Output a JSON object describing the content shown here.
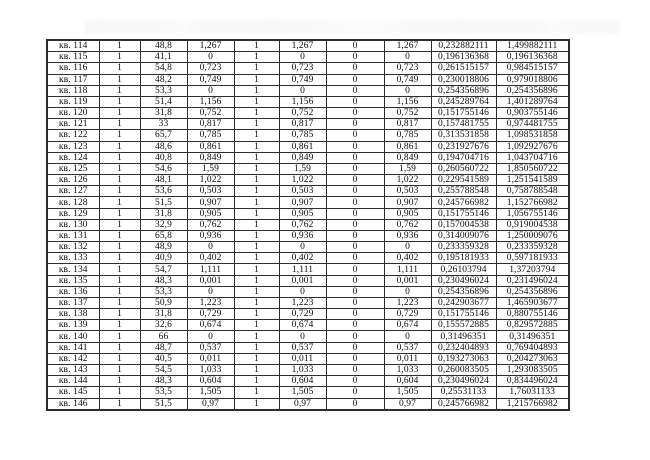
{
  "colors": {
    "background": "#ffffff",
    "border": "#2e2e2e",
    "text": "#0e0e0e"
  },
  "table": {
    "rows": [
      {
        "label": "кв. 114",
        "values": [
          "1",
          "48,8",
          "1,267",
          "1",
          "1,267",
          "0",
          "1,267",
          "0,232882111",
          "1,499882111"
        ]
      },
      {
        "label": "кв. 115",
        "values": [
          "1",
          "41,1",
          "0",
          "1",
          "0",
          "0",
          "0",
          "0,196136368",
          "0,196136368"
        ]
      },
      {
        "label": "кв. 116",
        "values": [
          "1",
          "54,8",
          "0,723",
          "1",
          "0,723",
          "0",
          "0,723",
          "0,261515157",
          "0,984515157"
        ]
      },
      {
        "label": "кв. 117",
        "values": [
          "1",
          "48,2",
          "0,749",
          "1",
          "0,749",
          "0",
          "0,749",
          "0,230018806",
          "0,979018806"
        ]
      },
      {
        "label": "кв. 118",
        "values": [
          "1",
          "53,3",
          "0",
          "1",
          "0",
          "0",
          "0",
          "0,254356896",
          "0,254356896"
        ]
      },
      {
        "label": "кв. 119",
        "values": [
          "1",
          "51,4",
          "1,156",
          "1",
          "1,156",
          "0",
          "1,156",
          "0,245289764",
          "1,401289764"
        ]
      },
      {
        "label": "кв. 120",
        "values": [
          "1",
          "31,8",
          "0,752",
          "1",
          "0,752",
          "0",
          "0,752",
          "0,151755146",
          "0,903755146"
        ]
      },
      {
        "label": "кв. 121",
        "values": [
          "1",
          "33",
          "0,817",
          "1",
          "0,817",
          "0",
          "0,817",
          "0,157481755",
          "0,974481755"
        ]
      },
      {
        "label": "кв. 122",
        "values": [
          "1",
          "65,7",
          "0,785",
          "1",
          "0,785",
          "0",
          "0,785",
          "0,313531858",
          "1,098531858"
        ]
      },
      {
        "label": "кв. 123",
        "values": [
          "1",
          "48,6",
          "0,861",
          "1",
          "0,861",
          "0",
          "0,861",
          "0,231927676",
          "1,092927676"
        ]
      },
      {
        "label": "кв. 124",
        "values": [
          "1",
          "40,8",
          "0,849",
          "1",
          "0,849",
          "0",
          "0,849",
          "0,194704716",
          "1,043704716"
        ]
      },
      {
        "label": "кв. 125",
        "values": [
          "1",
          "54,6",
          "1,59",
          "1",
          "1,59",
          "0",
          "1,59",
          "0,260560722",
          "1,850560722"
        ]
      },
      {
        "label": "кв. 126",
        "values": [
          "1",
          "48,1",
          "1,022",
          "1",
          "1,022",
          "0",
          "1,022",
          "0,229541589",
          "1,251541589"
        ]
      },
      {
        "label": "кв. 127",
        "values": [
          "1",
          "53,6",
          "0,503",
          "1",
          "0,503",
          "0",
          "0,503",
          "0,255788548",
          "0,758788548"
        ]
      },
      {
        "label": "кв. 128",
        "values": [
          "1",
          "51,5",
          "0,907",
          "1",
          "0,907",
          "0",
          "0,907",
          "0,245766982",
          "1,152766982"
        ]
      },
      {
        "label": "кв. 129",
        "values": [
          "1",
          "31,8",
          "0,905",
          "1",
          "0,905",
          "0",
          "0,905",
          "0,151755146",
          "1,056755146"
        ]
      },
      {
        "label": "кв. 130",
        "values": [
          "1",
          "32,9",
          "0,762",
          "1",
          "0,762",
          "0",
          "0,762",
          "0,157004538",
          "0,919004538"
        ]
      },
      {
        "label": "кв. 131",
        "values": [
          "1",
          "65,8",
          "0,936",
          "1",
          "0,936",
          "0",
          "0,936",
          "0,314009076",
          "1,250009076"
        ]
      },
      {
        "label": "кв. 132",
        "values": [
          "1",
          "48,9",
          "0",
          "1",
          "0",
          "0",
          "0",
          "0,233359328",
          "0,233359328"
        ]
      },
      {
        "label": "кв. 133",
        "values": [
          "1",
          "40,9",
          "0,402",
          "1",
          "0,402",
          "0",
          "0,402",
          "0,195181933",
          "0,597181933"
        ]
      },
      {
        "label": "кв. 134",
        "values": [
          "1",
          "54,7",
          "1,111",
          "1",
          "1,111",
          "0",
          "1,111",
          "0,26103794",
          "1,37203794"
        ]
      },
      {
        "label": "кв. 135",
        "values": [
          "1",
          "48,3",
          "0,001",
          "1",
          "0,001",
          "0",
          "0,001",
          "0,230496024",
          "0,231496024"
        ]
      },
      {
        "label": "кв. 136",
        "values": [
          "1",
          "53,3",
          "0",
          "1",
          "0",
          "0",
          "0",
          "0,254356896",
          "0,254356896"
        ]
      },
      {
        "label": "кв. 137",
        "values": [
          "1",
          "50,9",
          "1,223",
          "1",
          "1,223",
          "0",
          "1,223",
          "0,242903677",
          "1,465903677"
        ]
      },
      {
        "label": "кв. 138",
        "values": [
          "1",
          "31,8",
          "0,729",
          "1",
          "0,729",
          "0",
          "0,729",
          "0,151755146",
          "0,880755146"
        ]
      },
      {
        "label": "кв. 139",
        "values": [
          "1",
          "32,6",
          "0,674",
          "1",
          "0,674",
          "0",
          "0,674",
          "0,155572885",
          "0,829572885"
        ]
      },
      {
        "label": "кв. 140",
        "values": [
          "1",
          "66",
          "0",
          "1",
          "0",
          "0",
          "0",
          "0,31496351",
          "0,31496351"
        ]
      },
      {
        "label": "кв. 141",
        "values": [
          "1",
          "48,7",
          "0,537",
          "1",
          "0,537",
          "0",
          "0,537",
          "0,232404893",
          "0,769404893"
        ]
      },
      {
        "label": "кв. 142",
        "values": [
          "1",
          "40,5",
          "0,011",
          "1",
          "0,011",
          "0",
          "0,011",
          "0,193273063",
          "0,204273063"
        ]
      },
      {
        "label": "кв. 143",
        "values": [
          "1",
          "54,5",
          "1,033",
          "1",
          "1,033",
          "0",
          "1,033",
          "0,260083505",
          "1,293083505"
        ]
      },
      {
        "label": "кв. 144",
        "values": [
          "1",
          "48,3",
          "0,604",
          "1",
          "0,604",
          "0",
          "0,604",
          "0,230496024",
          "0,834496024"
        ]
      },
      {
        "label": "кв. 145",
        "values": [
          "1",
          "53,5",
          "1,505",
          "1",
          "1,505",
          "0",
          "1,505",
          "0,25531133",
          "1,76031133"
        ]
      },
      {
        "label": "кв. 146",
        "values": [
          "1",
          "51,5",
          "0,97",
          "1",
          "0,97",
          "0",
          "0,97",
          "0,245766982",
          "1,215766982"
        ]
      }
    ]
  }
}
